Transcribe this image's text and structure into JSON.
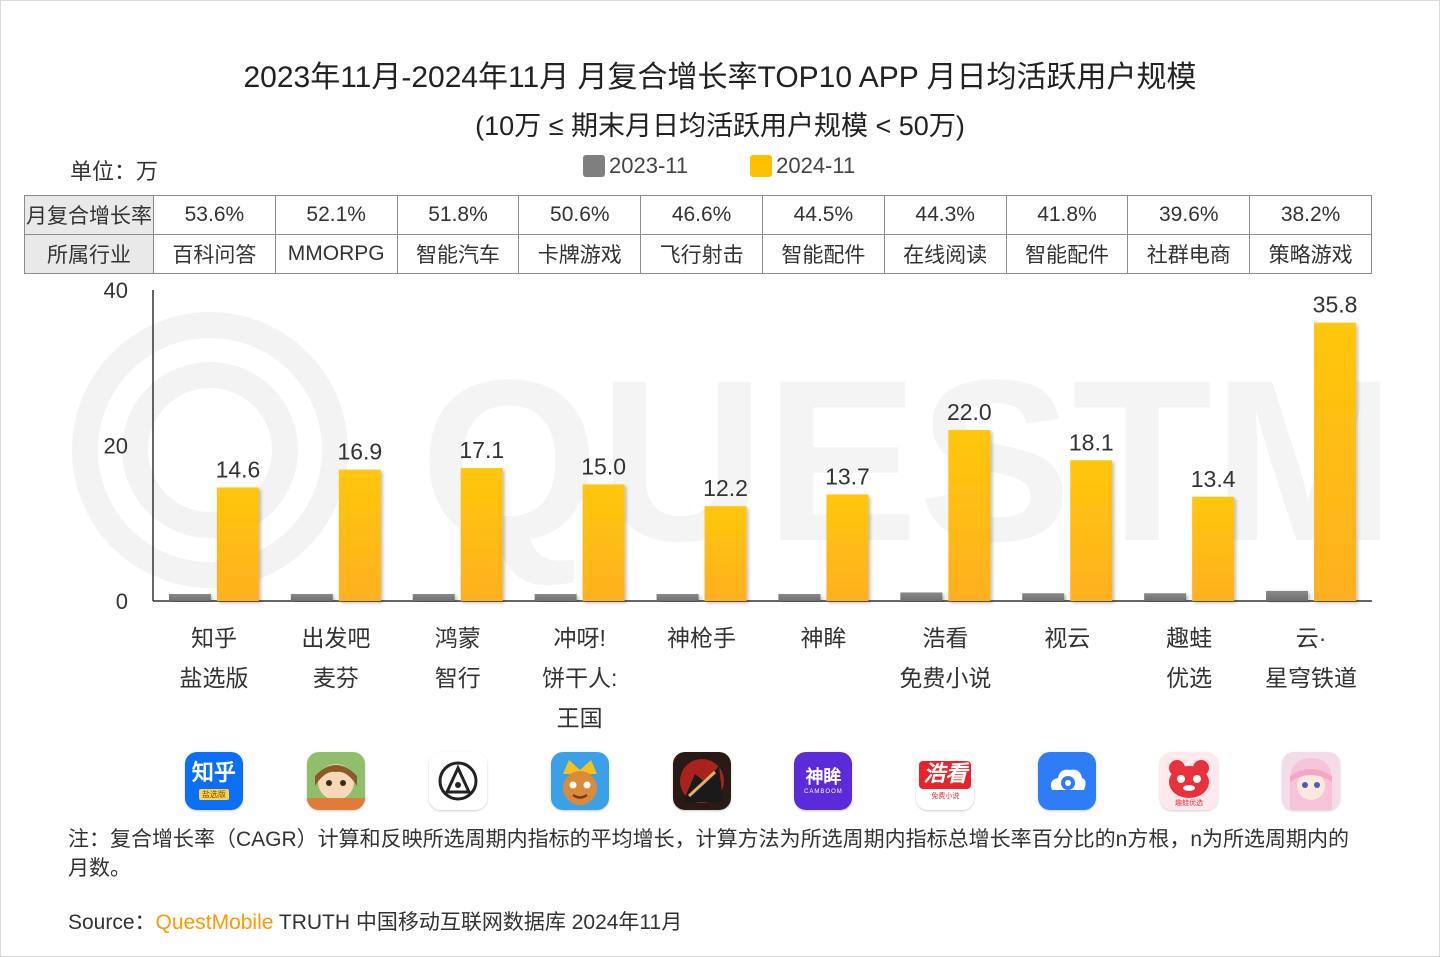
{
  "title": "2023年11月-2024年11月 月复合增长率TOP10 APP 月日均活跃用户规模",
  "subtitle": "(10万 ≤ 期末月日均活跃用户规模 < 50万)",
  "unit_label": "单位：万",
  "legend": [
    {
      "name": "2023-11",
      "color": "#7f7f7f"
    },
    {
      "name": "2024-11",
      "color": "#ffc000"
    }
  ],
  "table": {
    "row1_header": "月复合增长率",
    "row2_header": "所属行业",
    "cagr": [
      "53.6%",
      "52.1%",
      "51.8%",
      "50.6%",
      "46.6%",
      "44.5%",
      "44.3%",
      "41.8%",
      "39.6%",
      "38.2%"
    ],
    "industry": [
      "百科问答",
      "MMORPG",
      "智能汽车",
      "卡牌游戏",
      "飞行射击",
      "智能配件",
      "在线阅读",
      "智能配件",
      "社群电商",
      "策略游戏"
    ]
  },
  "apps": [
    {
      "lines": [
        "知乎",
        "盐选版"
      ],
      "icon": "zhihu-app-icon"
    },
    {
      "lines": [
        "出发吧",
        "麦芬"
      ],
      "icon": "game-girl-app-icon"
    },
    {
      "lines": [
        "鸿蒙",
        "智行"
      ],
      "icon": "harmony-car-app-icon"
    },
    {
      "lines": [
        "冲呀!",
        "饼干人:",
        "王国"
      ],
      "icon": "cookie-game-app-icon"
    },
    {
      "lines": [
        "神枪手"
      ],
      "icon": "shooter-game-app-icon"
    },
    {
      "lines": [
        "神眸"
      ],
      "icon": "shenmou-app-icon"
    },
    {
      "lines": [
        "浩看",
        "免费小说"
      ],
      "icon": "haokan-app-icon"
    },
    {
      "lines": [
        "视云"
      ],
      "icon": "cloud-eye-app-icon"
    },
    {
      "lines": [
        "趣蛙",
        "优选"
      ],
      "icon": "frog-app-icon"
    },
    {
      "lines": [
        "云·",
        "星穹铁道"
      ],
      "icon": "starrail-app-icon"
    }
  ],
  "icon_text": {
    "zhihu": "知乎",
    "zhihu_sub": "盐选版",
    "shenmou": "神眸",
    "shenmou_sub": "CAMBOOM",
    "haokan": "浩看",
    "haokan_sub": "免费小说",
    "qwa_sub": "趣蛙优选"
  },
  "chart_data": {
    "type": "bar",
    "categories": [
      "知乎 盐选版",
      "出发吧 麦芬",
      "鸿蒙 智行",
      "冲呀!饼干人:王国",
      "神枪手",
      "神眸",
      "浩看 免费小说",
      "视云",
      "趣蛙 优选",
      "云·星穹铁道"
    ],
    "series": [
      {
        "name": "2023-11",
        "values": [
          0.9,
          0.9,
          0.9,
          0.9,
          0.9,
          0.9,
          1.1,
          1.0,
          1.0,
          1.3
        ],
        "color": "#7f7f7f"
      },
      {
        "name": "2024-11",
        "values": [
          14.6,
          16.9,
          17.1,
          15.0,
          12.2,
          13.7,
          22.0,
          18.1,
          13.4,
          35.8
        ],
        "color": "#ffc000"
      }
    ],
    "data_labels": [
      "14.6",
      "16.9",
      "17.1",
      "15.0",
      "12.2",
      "13.7",
      "22.0",
      "18.1",
      "13.4",
      "35.8"
    ],
    "y_ticks": [
      "0",
      "20",
      "40"
    ],
    "ylim": [
      0,
      40
    ]
  },
  "note": "注：复合增长率（CAGR）计算和反映所选周期内指标的平均增长，计算方法为所选周期内指标总增长率百分比的n方根，n为所选周期内的月数。",
  "source_prefix": "Source：",
  "source_brand": "QuestMobile",
  "source_rest": " TRUTH 中国移动互联网数据库 2024年11月"
}
